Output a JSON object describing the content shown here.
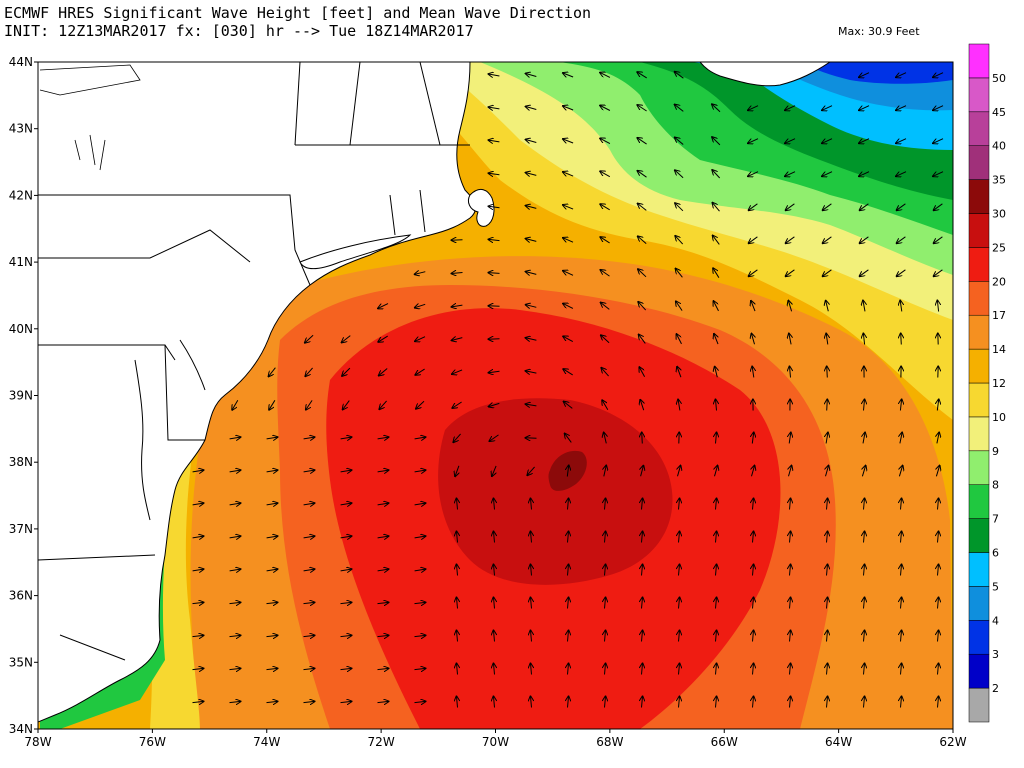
{
  "title": {
    "line1": "ECMWF HRES Significant Wave Height [feet] and Mean Wave Direction",
    "line2": "INIT: 12Z13MAR2017 fx: [030] hr --> Tue 18Z14MAR2017",
    "max_label": "Max:  30.9 Feet"
  },
  "map": {
    "lon_range": [
      -78,
      -62
    ],
    "lat_range": [
      34,
      44
    ],
    "lon_ticks": [
      {
        "value": -78,
        "label": "78W"
      },
      {
        "value": -76,
        "label": "76W"
      },
      {
        "value": -74,
        "label": "74W"
      },
      {
        "value": -72,
        "label": "72W"
      },
      {
        "value": -70,
        "label": "70W"
      },
      {
        "value": -68,
        "label": "68W"
      },
      {
        "value": -66,
        "label": "66W"
      },
      {
        "value": -64,
        "label": "64W"
      },
      {
        "value": -62,
        "label": "62W"
      }
    ],
    "lat_ticks": [
      {
        "value": 34,
        "label": "34N"
      },
      {
        "value": 35,
        "label": "35N"
      },
      {
        "value": 36,
        "label": "36N"
      },
      {
        "value": 37,
        "label": "37N"
      },
      {
        "value": 38,
        "label": "38N"
      },
      {
        "value": 39,
        "label": "39N"
      },
      {
        "value": 40,
        "label": "40N"
      },
      {
        "value": 41,
        "label": "41N"
      },
      {
        "value": 42,
        "label": "42N"
      },
      {
        "value": 43,
        "label": "43N"
      },
      {
        "value": 44,
        "label": "44N"
      }
    ],
    "storm_center": {
      "lon": -69.2,
      "lat": 37.8,
      "max_height_ft": 30.9
    }
  },
  "colorbar": {
    "levels": [
      {
        "label": "",
        "color": "#a8a8a8"
      },
      {
        "label": "2",
        "color": "#0000c8"
      },
      {
        "label": "3",
        "color": "#0033e6"
      },
      {
        "label": "4",
        "color": "#0f8fdd"
      },
      {
        "label": "5",
        "color": "#00bfff"
      },
      {
        "label": "6",
        "color": "#00962a"
      },
      {
        "label": "7",
        "color": "#20c840"
      },
      {
        "label": "8",
        "color": "#90ee6e"
      },
      {
        "label": "9",
        "color": "#f2f07a"
      },
      {
        "label": "10",
        "color": "#f7d830"
      },
      {
        "label": "12",
        "color": "#f5b000"
      },
      {
        "label": "14",
        "color": "#f59020"
      },
      {
        "label": "17",
        "color": "#f56220"
      },
      {
        "label": "20",
        "color": "#ef1c12"
      },
      {
        "label": "25",
        "color": "#c80f0f"
      },
      {
        "label": "30",
        "color": "#8c0a0a"
      },
      {
        "label": "35",
        "color": "#a0307a"
      },
      {
        "label": "40",
        "color": "#b8409a"
      },
      {
        "label": "45",
        "color": "#d858c8"
      },
      {
        "label": "50",
        "color": "#ff30ff"
      }
    ]
  }
}
